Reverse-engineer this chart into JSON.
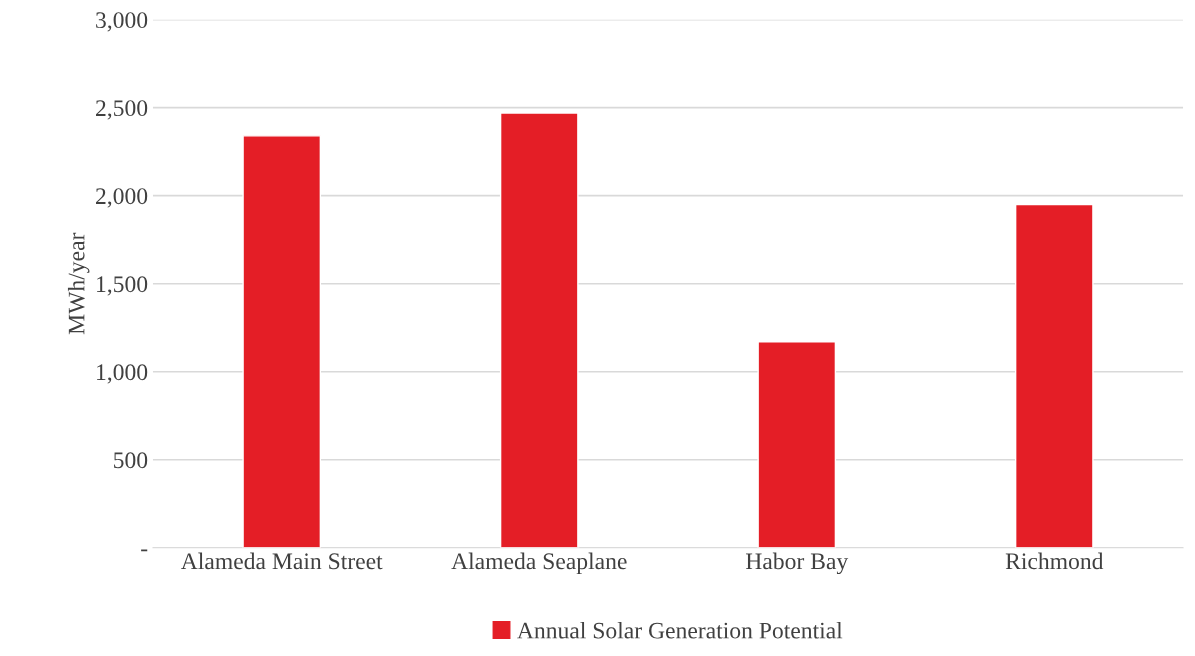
{
  "chart_data": {
    "type": "bar",
    "ylabel": "MWh/year",
    "categories": [
      "Alameda Main Street",
      "Alameda Seaplane",
      "Habor Bay",
      "Richmond"
    ],
    "series": [
      {
        "name": "Annual Solar Generation Potential",
        "color": "#e41e26",
        "values": [
          2340,
          2470,
          1170,
          1950
        ]
      }
    ],
    "ylim": [
      0,
      3000
    ],
    "yticks": [
      {
        "value": 0,
        "label": "-"
      },
      {
        "value": 500,
        "label": "500"
      },
      {
        "value": 1000,
        "label": "1,000"
      },
      {
        "value": 1500,
        "label": "1,500"
      },
      {
        "value": 2000,
        "label": "2,000"
      },
      {
        "value": 2500,
        "label": "2,500"
      },
      {
        "value": 3000,
        "label": "3,000"
      }
    ],
    "grid": "y",
    "legend": "bottom"
  }
}
